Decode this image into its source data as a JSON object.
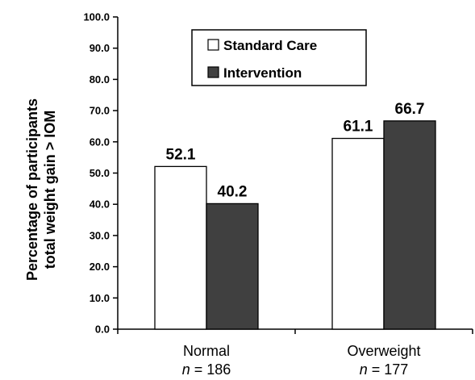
{
  "chart_data": {
    "type": "bar",
    "categories": [
      "Normal",
      "Overweight"
    ],
    "category_n": [
      {
        "prefix": "n",
        "text": " = 186"
      },
      {
        "prefix": "n",
        "text": " = 177"
      }
    ],
    "series": [
      {
        "name": "Standard Care",
        "values": [
          52.1,
          61.1
        ],
        "color": "#ffffff",
        "label": [
          "52.1",
          "61.1"
        ]
      },
      {
        "name": "Intervention",
        "values": [
          40.2,
          66.7
        ],
        "color": "#404040",
        "label": [
          "40.2",
          "66.7"
        ]
      }
    ],
    "ylabel_lines": [
      "Percentage of participants",
      "total weight gain > IOM"
    ],
    "xlabel": "",
    "title": "",
    "ylim": [
      0,
      100
    ],
    "yticks": [
      "0.0",
      "10.0",
      "20.0",
      "30.0",
      "40.0",
      "50.0",
      "60.0",
      "70.0",
      "80.0",
      "90.0",
      "100.0"
    ],
    "grid": false,
    "legend_position": "top-right"
  }
}
